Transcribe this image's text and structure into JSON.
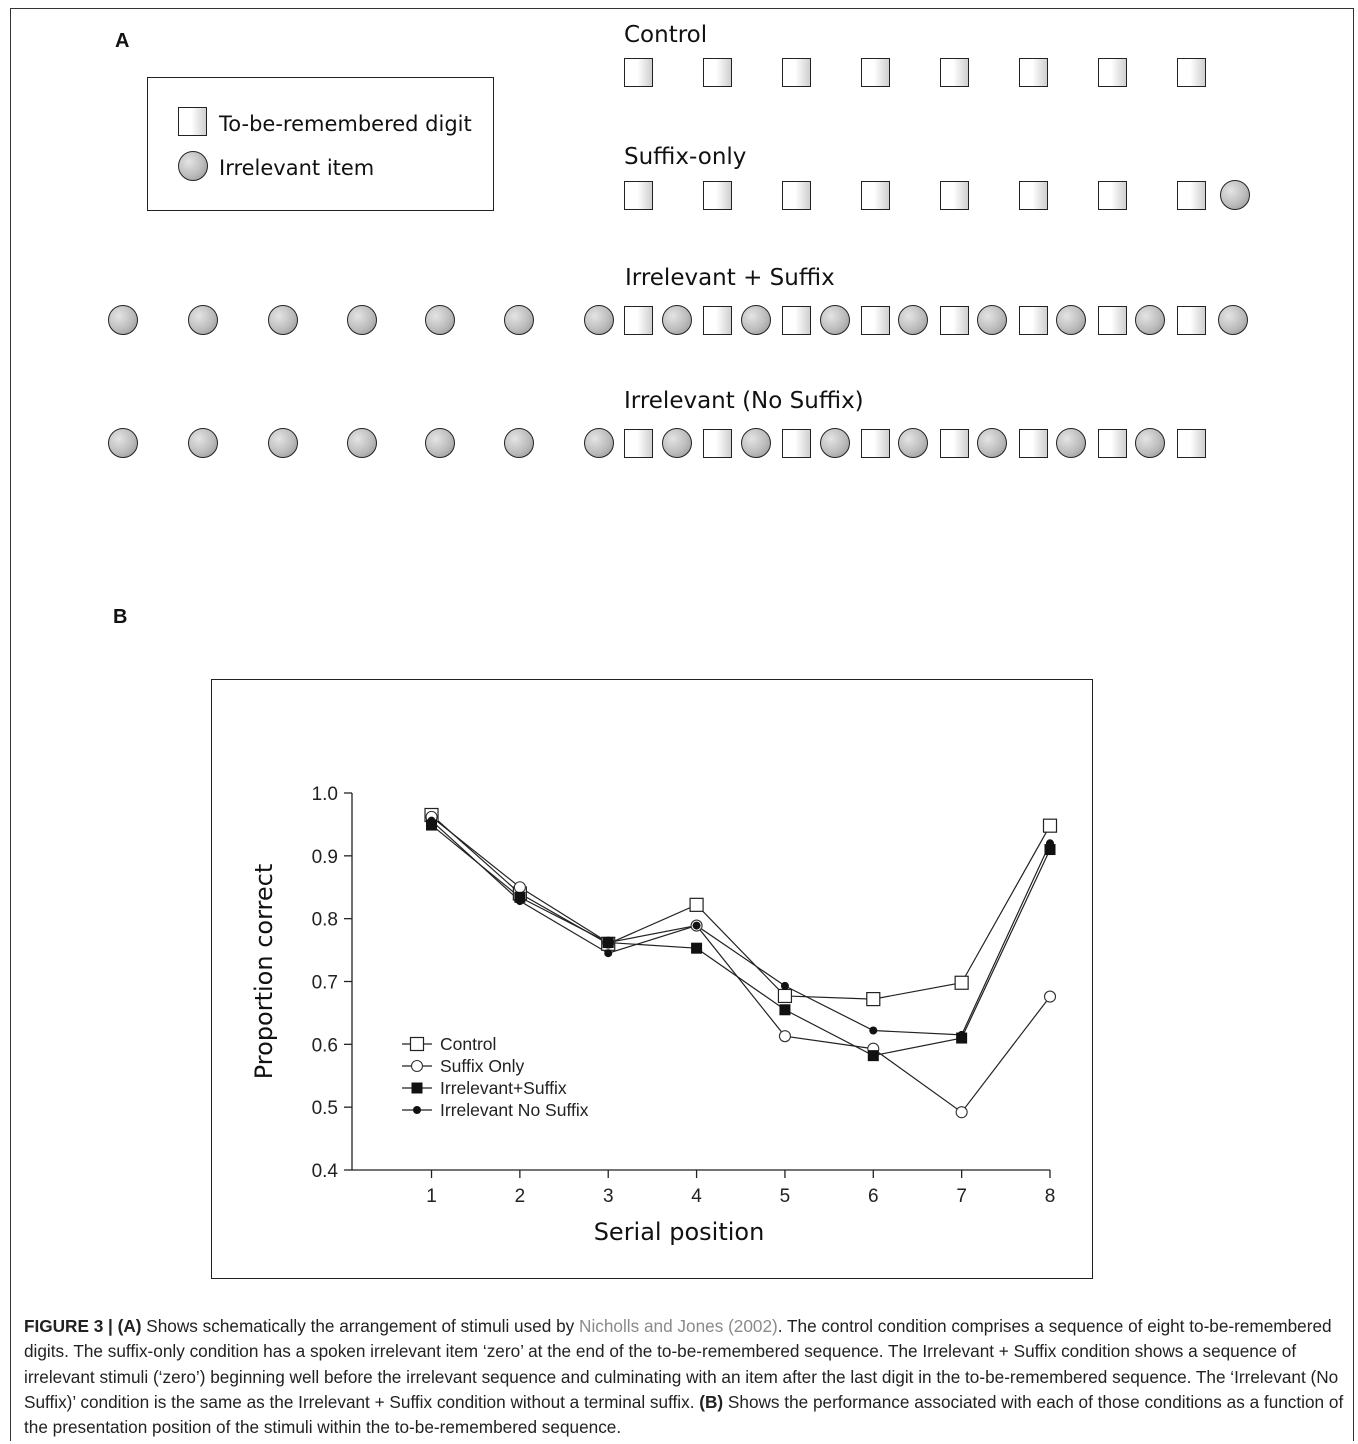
{
  "panel_a": {
    "letter": "A",
    "legend": {
      "square_label": "To-be-remembered digit",
      "circle_label": "Irrelevant item"
    },
    "rows": {
      "control": "Control",
      "suffix_only": "Suffix-only",
      "irrelevant_suffix": "Irrelevant + Suffix",
      "irrelevant_no_suffix": "Irrelevant (No Suffix)"
    }
  },
  "panel_b": {
    "letter": "B"
  },
  "chart_data": {
    "type": "line",
    "xlabel": "Serial position",
    "ylabel": "Proportion correct",
    "x": [
      1,
      2,
      3,
      4,
      5,
      6,
      7,
      8
    ],
    "xticks": [
      "1",
      "2",
      "3",
      "4",
      "5",
      "6",
      "7",
      "8"
    ],
    "yticks": [
      "0.4",
      "0.5",
      "0.6",
      "0.7",
      "0.8",
      "0.9",
      "1.0"
    ],
    "ylim": [
      0.4,
      1.0
    ],
    "xlim": [
      0.1,
      8
    ],
    "grid": false,
    "legend_position": "bottom-left",
    "series": [
      {
        "name": "Control",
        "marker": "open-square",
        "values": [
          0.965,
          0.84,
          0.76,
          0.822,
          0.677,
          0.672,
          0.698,
          0.948
        ]
      },
      {
        "name": "Suffix Only",
        "marker": "open-circle",
        "values": [
          0.962,
          0.85,
          0.762,
          0.789,
          0.613,
          0.593,
          0.492,
          0.676
        ]
      },
      {
        "name": "Irrelevant+Suffix",
        "marker": "filled-square",
        "values": [
          0.949,
          0.834,
          0.762,
          0.753,
          0.655,
          0.582,
          0.61,
          0.91
        ]
      },
      {
        "name": "Irrelevant No Suffix",
        "marker": "filled-circle",
        "values": [
          0.956,
          0.828,
          0.745,
          0.789,
          0.693,
          0.622,
          0.615,
          0.92
        ]
      }
    ]
  },
  "caption": {
    "figure_label": "FIGURE 3 | ",
    "part_a": "(A)",
    "text_1": " Shows schematically the arrangement of stimuli used by ",
    "citation": "Nicholls and Jones (2002)",
    "text_2": ". The control condition comprises a sequence of eight to-be-remembered digits. The suffix-only condition has a spoken irrelevant item ‘zero’ at the end of the to-be-remembered sequence. The Irrelevant + Suffix condition shows a sequence of irrelevant stimuli (‘zero’) beginning well before the irrelevant sequence and culminating with an item after the last digit in the to-be-remembered sequence. The ‘Irrelevant (No Suffix)’ condition is the same as the Irrelevant + Suffix condition without a terminal suffix. ",
    "part_b": "(B)",
    "text_3": " Shows the performance associated with each of those conditions as a function of the presentation position of the stimuli within the to-be-remembered sequence."
  }
}
